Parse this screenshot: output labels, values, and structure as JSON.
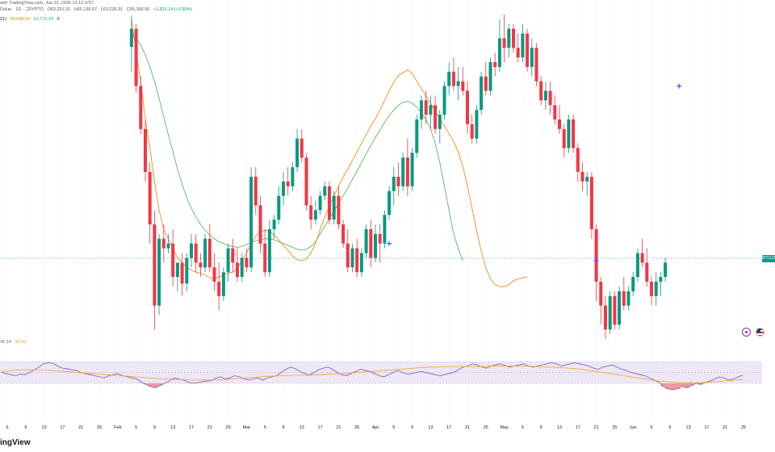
{
  "header": {
    "publisher": "with TradingView.com, Jun 22, 2026 13:12 UTC",
    "symbol": "Dollar · 1D · CRYPTO",
    "ohlc": [
      "O63,235.31",
      "H65,136.07",
      "L63,235.31",
      "C65,066.90",
      "+1,831.14 (+2.90%)"
    ],
    "ema_label": "21)",
    "ema_values": [
      "64,598.83",
      "63,735.19"
    ],
    "ema_suffix": "0"
  },
  "price_tag": "BTCUSD",
  "rsi_legend": {
    "rsi": "45.14",
    "rsi_ma": "36.59"
  },
  "watermark": "ingView",
  "colors": {
    "up": "#089981",
    "down": "#f23645",
    "ema_fast": "#f57c00",
    "ema_slow": "#4caf50",
    "rsi": "#7e57c2",
    "rsi_ma": "#f5a623",
    "rsi_band": "#ede7f6"
  },
  "chart_data": [
    {
      "type": "candlestick",
      "title": "",
      "x_tick_labels": [
        "5",
        "9",
        "13",
        "17",
        "21",
        "25",
        "Feb",
        "5",
        "9",
        "13",
        "17",
        "21",
        "25",
        "Mar",
        "5",
        "9",
        "13",
        "17",
        "21",
        "25",
        "Apr",
        "5",
        "9",
        "13",
        "17",
        "21",
        "25",
        "May",
        "5",
        "9",
        "13",
        "17",
        "21",
        "25",
        "Jun",
        "5",
        "9",
        "13",
        "17",
        "21",
        "25"
      ],
      "ylim": [
        57000,
        91500
      ],
      "last_price": 65066.9,
      "candles_ohlc_from_feb1": [
        [
          87600,
          90900,
          85000,
          89500
        ],
        [
          89500,
          90000,
          82800,
          83500
        ],
        [
          83500,
          84500,
          78500,
          79000
        ],
        [
          79000,
          80000,
          73500,
          74500
        ],
        [
          74500,
          75500,
          67000,
          69000
        ],
        [
          69000,
          70500,
          58000,
          60500
        ],
        [
          60500,
          68000,
          59500,
          67500
        ],
        [
          67500,
          69000,
          65000,
          66500
        ],
        [
          66500,
          68000,
          66000,
          67000
        ],
        [
          67000,
          68500,
          62500,
          63500
        ],
        [
          63500,
          65000,
          62000,
          65000
        ],
        [
          65000,
          66000,
          61500,
          62800
        ],
        [
          62800,
          66000,
          62000,
          65500
        ],
        [
          65500,
          68000,
          64500,
          67000
        ],
        [
          67000,
          68000,
          64000,
          65000
        ],
        [
          65000,
          66000,
          63500,
          64500
        ],
        [
          64500,
          68000,
          64000,
          67500
        ],
        [
          67500,
          69000,
          64000,
          64500
        ],
        [
          64500,
          66000,
          62000,
          63000
        ],
        [
          63000,
          65000,
          60000,
          61500
        ],
        [
          61500,
          64500,
          61000,
          64000
        ],
        [
          64000,
          67000,
          63000,
          66500
        ],
        [
          66500,
          67500,
          64000,
          65000
        ],
        [
          65000,
          66500,
          63000,
          63500
        ],
        [
          63500,
          66000,
          63000,
          65500
        ],
        [
          65500,
          66500,
          64000,
          64500
        ],
        [
          64500,
          75000,
          64000,
          74000
        ],
        [
          74000,
          75000,
          70000,
          71000
        ],
        [
          71000,
          72000,
          66000,
          67000
        ],
        [
          67000,
          68500,
          63500,
          64000
        ],
        [
          64000,
          69500,
          63500,
          68500
        ],
        [
          68500,
          70000,
          67500,
          69500
        ],
        [
          69500,
          73000,
          69000,
          72000
        ],
        [
          72000,
          74500,
          71000,
          73500
        ],
        [
          73500,
          75000,
          72000,
          73000
        ],
        [
          73000,
          75500,
          72500,
          75000
        ],
        [
          75000,
          79000,
          74500,
          78000
        ],
        [
          78000,
          79000,
          75500,
          76000
        ],
        [
          76000,
          76500,
          70500,
          71000
        ],
        [
          71000,
          72000,
          68500,
          69500
        ],
        [
          69500,
          71500,
          69000,
          70500
        ],
        [
          70500,
          72500,
          70000,
          72000
        ],
        [
          72000,
          73500,
          71500,
          73000
        ],
        [
          73000,
          73500,
          69000,
          69500
        ],
        [
          69500,
          72500,
          69000,
          72000
        ],
        [
          72000,
          73000,
          68500,
          69000
        ],
        [
          69000,
          69500,
          66500,
          67000
        ],
        [
          67000,
          68500,
          64000,
          64500
        ],
        [
          64500,
          67000,
          64000,
          66500
        ],
        [
          66500,
          67500,
          63500,
          64000
        ],
        [
          64000,
          66500,
          63500,
          66000
        ],
        [
          66000,
          69000,
          65500,
          68500
        ],
        [
          68500,
          69500,
          64500,
          65500
        ],
        [
          65500,
          69000,
          65000,
          68000
        ],
        [
          68000,
          69000,
          65000,
          67000
        ],
        [
          67000,
          70500,
          66500,
          70000
        ],
        [
          70000,
          73000,
          69500,
          72500
        ],
        [
          72500,
          75000,
          71000,
          74000
        ],
        [
          74000,
          75500,
          72000,
          73000
        ],
        [
          73000,
          76500,
          72500,
          76000
        ],
        [
          76000,
          78000,
          72000,
          73000
        ],
        [
          73000,
          77000,
          72500,
          76500
        ],
        [
          76500,
          80500,
          76000,
          80000
        ],
        [
          80000,
          82500,
          79000,
          82000
        ],
        [
          82000,
          83000,
          79500,
          80500
        ],
        [
          80500,
          82500,
          79000,
          81500
        ],
        [
          81500,
          82500,
          78500,
          79000
        ],
        [
          79000,
          81000,
          77500,
          80500
        ],
        [
          80500,
          84000,
          80000,
          83500
        ],
        [
          83500,
          86000,
          82500,
          85000
        ],
        [
          85000,
          86500,
          83000,
          83500
        ],
        [
          83500,
          85500,
          82000,
          84000
        ],
        [
          84000,
          85500,
          82500,
          83000
        ],
        [
          83000,
          84000,
          78500,
          79500
        ],
        [
          79500,
          80500,
          77500,
          78000
        ],
        [
          78000,
          81500,
          77500,
          81000
        ],
        [
          81000,
          85000,
          80500,
          84500
        ],
        [
          84500,
          86000,
          82500,
          83000
        ],
        [
          83000,
          86500,
          82500,
          86000
        ],
        [
          86000,
          87000,
          84500,
          85500
        ],
        [
          85500,
          90500,
          85000,
          88500
        ],
        [
          88500,
          91000,
          86000,
          87500
        ],
        [
          87500,
          90000,
          86500,
          89500
        ],
        [
          89500,
          90000,
          87000,
          87500
        ],
        [
          87500,
          89000,
          86000,
          86500
        ],
        [
          86500,
          90000,
          86000,
          89000
        ],
        [
          89000,
          89500,
          85000,
          85500
        ],
        [
          85500,
          88500,
          84500,
          87500
        ],
        [
          87500,
          88000,
          83500,
          84000
        ],
        [
          84000,
          84500,
          81500,
          82000
        ],
        [
          82000,
          84000,
          81000,
          83000
        ],
        [
          83000,
          84000,
          80500,
          81500
        ],
        [
          81500,
          82500,
          79500,
          80000
        ],
        [
          80000,
          81500,
          78500,
          79000
        ],
        [
          79000,
          79500,
          76000,
          77000
        ],
        [
          77000,
          80500,
          76500,
          80000
        ],
        [
          80000,
          80500,
          76500,
          77000
        ],
        [
          77000,
          77500,
          73500,
          74500
        ],
        [
          74500,
          75500,
          72500,
          73500
        ],
        [
          73500,
          74500,
          72000,
          74000
        ],
        [
          74000,
          74500,
          67500,
          68500
        ],
        [
          68500,
          69000,
          61000,
          63000
        ],
        [
          63000,
          63500,
          58500,
          60500
        ],
        [
          60500,
          61500,
          57000,
          58000
        ],
        [
          58000,
          62000,
          57500,
          61500
        ],
        [
          61500,
          62000,
          58000,
          58500
        ],
        [
          58500,
          62500,
          58000,
          62000
        ],
        [
          62000,
          63500,
          60000,
          60500
        ],
        [
          60500,
          62500,
          60000,
          62000
        ],
        [
          62000,
          64000,
          61500,
          63500
        ],
        [
          63500,
          66500,
          63000,
          66000
        ],
        [
          66000,
          67500,
          64500,
          65000
        ],
        [
          65000,
          66500,
          62500,
          63000
        ],
        [
          63000,
          63500,
          60500,
          61500
        ],
        [
          61500,
          64000,
          60500,
          63000
        ],
        [
          63000,
          64000,
          61500,
          63500
        ],
        [
          63500,
          65500,
          63000,
          65000
        ]
      ],
      "ema_fast_from_jan9": [
        90500,
        87000,
        84000,
        80000,
        77000,
        73500,
        70500,
        68500,
        67500,
        66500,
        65500,
        65000,
        64500,
        64200,
        64000,
        63900,
        63700,
        63400,
        63300,
        63500,
        63700,
        63900,
        64000,
        64400,
        65200,
        66000,
        67000,
        67800,
        68200,
        68400,
        68300,
        67900,
        67400,
        66800,
        66300,
        65700,
        65300,
        65200,
        65400,
        66000,
        67000,
        68500,
        69800,
        70900,
        72000,
        73000,
        74000,
        74800,
        75700,
        76600,
        77500,
        78400,
        79300,
        80100,
        81000,
        82000,
        83000,
        83900,
        84600,
        84900,
        85200,
        84800,
        84000,
        83200,
        82500,
        81700,
        80900,
        80100,
        79300,
        78500,
        77700,
        76600,
        75100,
        73000,
        70700,
        68400,
        66200,
        64500,
        63300,
        62700,
        62500,
        62500,
        62700,
        63100,
        63300,
        63400,
        63500
      ],
      "ema_slow_from_jan9": [
        89000,
        88500,
        87800,
        86800,
        85500,
        84000,
        82200,
        80300,
        78400,
        76600,
        74800,
        73200,
        71800,
        70700,
        69800,
        69000,
        68400,
        67900,
        67500,
        67200,
        67000,
        66800,
        66700,
        66600,
        66700,
        66900,
        67100,
        67300,
        67400,
        67500,
        67500,
        67400,
        67200,
        67000,
        66800,
        66600,
        66400,
        66300,
        66400,
        66700,
        67200,
        68000,
        68800,
        69600,
        70400,
        71200,
        72000,
        72800,
        73700,
        74600,
        75500,
        76400,
        77300,
        78100,
        78900,
        79700,
        80400,
        81000,
        81500,
        81800,
        81900,
        81700,
        81300,
        80700,
        80000,
        79000,
        77500,
        75500,
        73000,
        70500,
        68000,
        66500,
        65200
      ],
      "rsi": {
        "ylim": [
          0,
          100
        ],
        "levels": [
          70,
          50,
          30
        ],
        "rsi_values": [
          50,
          48,
          46,
          44,
          47,
          46,
          50,
          55,
          60,
          66,
          68,
          67,
          62,
          58,
          57,
          55,
          54,
          50,
          48,
          46,
          44,
          42,
          40,
          44,
          46,
          48,
          44,
          42,
          40,
          38,
          32,
          28,
          24,
          22,
          26,
          30,
          34,
          40,
          38,
          36,
          32,
          30,
          31,
          33,
          34,
          35,
          40,
          42,
          38,
          40,
          44,
          42,
          38,
          36,
          38,
          40,
          36,
          40,
          42,
          44,
          50,
          56,
          60,
          57,
          52,
          48,
          45,
          50,
          55,
          58,
          60,
          56,
          50,
          46,
          44,
          48,
          52,
          56,
          54,
          52,
          48,
          44,
          42,
          46,
          50,
          54,
          50,
          47,
          48,
          50,
          52,
          50,
          48,
          46,
          44,
          46,
          48,
          50,
          55,
          60,
          62,
          66,
          64,
          60,
          58,
          62,
          64,
          66,
          63,
          60,
          62,
          64,
          66,
          62,
          60,
          62,
          64,
          66,
          68,
          66,
          62,
          64,
          66,
          68,
          66,
          64,
          62,
          58,
          56,
          60,
          62,
          64,
          60,
          56,
          54,
          50,
          48,
          46,
          44,
          40,
          36,
          32,
          24,
          20,
          18,
          20,
          24,
          22,
          26,
          30,
          28,
          32,
          34,
          38,
          42,
          40,
          36,
          38,
          42,
          45
        ],
        "rsi_ma_values": [
          52,
          53,
          54,
          55,
          55,
          55,
          55,
          54,
          53,
          52,
          51,
          50,
          49,
          48,
          47,
          46,
          45,
          44,
          43,
          42,
          41,
          40,
          39,
          38,
          37,
          37,
          37,
          36,
          36,
          36,
          36,
          37,
          37,
          38,
          39,
          40,
          41,
          42,
          43,
          43,
          44,
          44,
          45,
          45,
          45,
          46,
          46,
          47,
          47,
          48,
          49,
          50,
          51,
          52,
          53,
          54,
          55,
          56,
          57,
          58,
          59,
          60,
          60,
          61,
          61,
          61,
          61,
          61,
          61,
          61,
          62,
          62,
          62,
          62,
          62,
          62,
          61,
          61,
          60,
          60,
          59,
          58,
          57,
          56,
          54,
          52,
          50,
          48,
          46,
          44,
          42,
          40,
          38,
          36,
          34,
          33,
          32,
          31,
          31,
          31,
          31,
          32,
          33,
          34,
          35,
          36,
          37
        ]
      }
    }
  ]
}
